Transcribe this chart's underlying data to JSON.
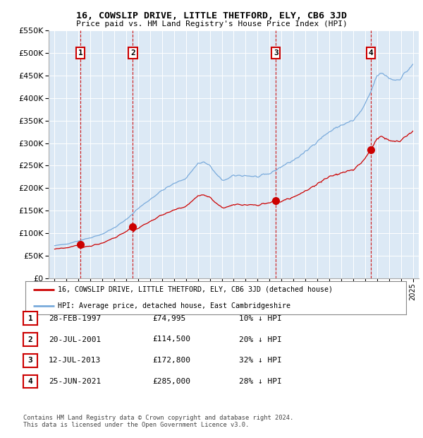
{
  "title": "16, COWSLIP DRIVE, LITTLE THETFORD, ELY, CB6 3JD",
  "subtitle": "Price paid vs. HM Land Registry's House Price Index (HPI)",
  "sale_dates_num": [
    1997.16,
    2001.55,
    2013.53,
    2021.48
  ],
  "sale_prices": [
    74995,
    114500,
    172800,
    285000
  ],
  "sale_labels": [
    "1",
    "2",
    "3",
    "4"
  ],
  "legend_line1": "16, COWSLIP DRIVE, LITTLE THETFORD, ELY, CB6 3JD (detached house)",
  "legend_line2": "HPI: Average price, detached house, East Cambridgeshire",
  "table_rows": [
    [
      "1",
      "28-FEB-1997",
      "£74,995",
      "10% ↓ HPI"
    ],
    [
      "2",
      "20-JUL-2001",
      "£114,500",
      "20% ↓ HPI"
    ],
    [
      "3",
      "12-JUL-2013",
      "£172,800",
      "32% ↓ HPI"
    ],
    [
      "4",
      "25-JUN-2021",
      "£285,000",
      "28% ↓ HPI"
    ]
  ],
  "footer": "Contains HM Land Registry data © Crown copyright and database right 2024.\nThis data is licensed under the Open Government Licence v3.0.",
  "red_color": "#cc0000",
  "blue_color": "#7aabdc",
  "plot_bg": "#dce9f5",
  "ylim": [
    0,
    550000
  ],
  "xlim": [
    1994.5,
    2025.5
  ]
}
